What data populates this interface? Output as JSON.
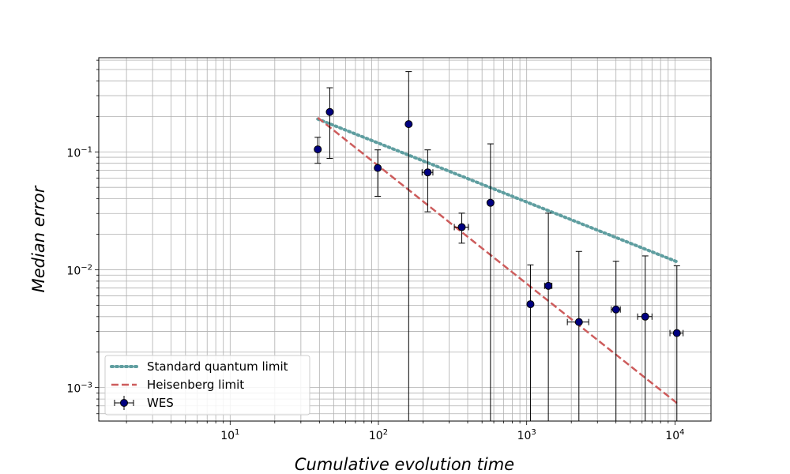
{
  "chart_data": {
    "type": "scatter",
    "xlabel": "Cumulative evolution time",
    "ylabel": "Median error",
    "xscale": "log",
    "yscale": "log",
    "xlim": [
      1.3,
      17500
    ],
    "ylim": [
      0.00052,
      0.63
    ],
    "x_ticks": [
      {
        "value": 10,
        "base": "10",
        "exp": "1"
      },
      {
        "value": 100,
        "base": "10",
        "exp": "2"
      },
      {
        "value": 1000,
        "base": "10",
        "exp": "3"
      },
      {
        "value": 10000,
        "base": "10",
        "exp": "4"
      }
    ],
    "y_ticks": [
      {
        "value": 0.001,
        "base": "10",
        "exp": "−3"
      },
      {
        "value": 0.01,
        "base": "10",
        "exp": "−2"
      },
      {
        "value": 0.1,
        "base": "10",
        "exp": "−1"
      }
    ],
    "grid": true,
    "grid_which": "both",
    "legend_position": "lower-left",
    "colors": {
      "sql": "#5f9ea0",
      "heisenberg": "#cd5c5c",
      "wes_marker": "#000080",
      "errorbar": "#000000",
      "grid": "#b0b0b0"
    },
    "series": [
      {
        "name": "Standard quantum limit",
        "type": "line",
        "style": "dotted",
        "x": [
          39,
          10300
        ],
        "y": [
          0.19,
          0.0117
        ]
      },
      {
        "name": "Heisenberg limit",
        "type": "line",
        "style": "dashed",
        "x": [
          39,
          10300
        ],
        "y": [
          0.195,
          0.00074
        ]
      },
      {
        "name": "WES",
        "type": "errorbar",
        "points": [
          {
            "x": 39,
            "y": 0.105,
            "ylo": 0.08,
            "yhi": 0.133,
            "xerr": 0
          },
          {
            "x": 47,
            "y": 0.218,
            "ylo": 0.088,
            "yhi": 0.35,
            "xerr": 0
          },
          {
            "x": 99,
            "y": 0.073,
            "ylo": 0.042,
            "yhi": 0.104,
            "xerr": 0
          },
          {
            "x": 160,
            "y": 0.172,
            "ylo": 0.0005,
            "yhi": 0.48,
            "xerr": 0
          },
          {
            "x": 215,
            "y": 0.067,
            "ylo": 0.031,
            "yhi": 0.104,
            "xerr": 18
          },
          {
            "x": 365,
            "y": 0.023,
            "ylo": 0.0168,
            "yhi": 0.0302,
            "xerr": 40
          },
          {
            "x": 570,
            "y": 0.037,
            "ylo": 0.0005,
            "yhi": 0.117,
            "xerr": 0
          },
          {
            "x": 1060,
            "y": 0.0051,
            "ylo": 0.0005,
            "yhi": 0.011,
            "xerr": 0
          },
          {
            "x": 1400,
            "y": 0.0073,
            "ylo": 0.0005,
            "yhi": 0.0302,
            "xerr": 80
          },
          {
            "x": 2250,
            "y": 0.0036,
            "ylo": 0.0005,
            "yhi": 0.0143,
            "xerr": 370
          },
          {
            "x": 4000,
            "y": 0.0046,
            "ylo": 0.0005,
            "yhi": 0.0118,
            "xerr": 280
          },
          {
            "x": 6300,
            "y": 0.004,
            "ylo": 0.0005,
            "yhi": 0.0131,
            "xerr": 700
          },
          {
            "x": 10300,
            "y": 0.0029,
            "ylo": 0.0005,
            "yhi": 0.0108,
            "xerr": 1050
          }
        ]
      }
    ]
  }
}
